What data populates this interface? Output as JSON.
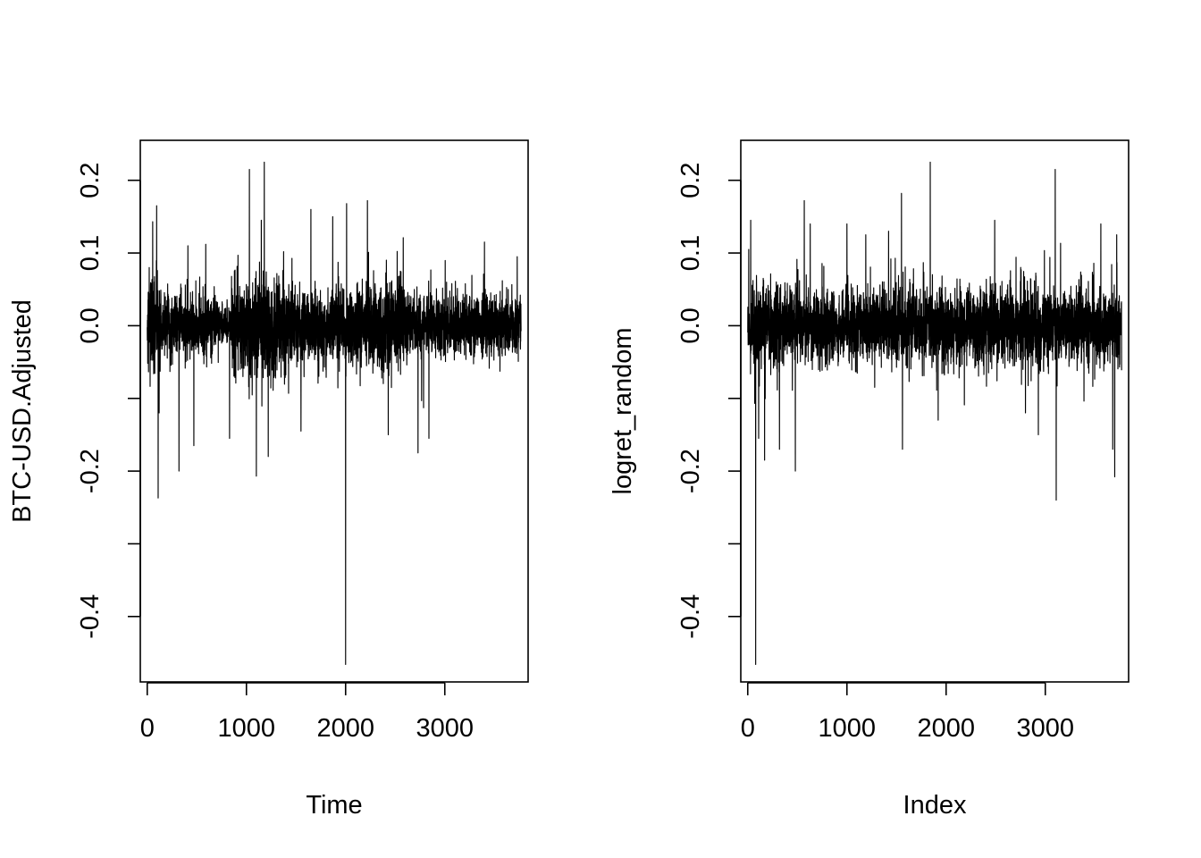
{
  "chart_data": [
    {
      "type": "line",
      "xlabel": "Time",
      "ylabel": "BTC-USD.Adjusted",
      "xticks": [
        0,
        1000,
        2000,
        3000
      ],
      "yticks": [
        -0.4,
        -0.3,
        -0.2,
        -0.1,
        0.0,
        0.1,
        0.2
      ],
      "ytick_labels": [
        "-0.4",
        "",
        "-0.2",
        "",
        "0.0",
        "0.1",
        "0.2"
      ],
      "xlim": [
        -70,
        3840
      ],
      "ylim": [
        -0.49,
        0.255
      ],
      "n_points": 3770,
      "noise": {
        "base_sigma": 0.028
      },
      "volatility_regimes": [
        {
          "x": [
            0,
            150
          ],
          "sigma": 0.045
        },
        {
          "x": [
            150,
            700
          ],
          "sigma": 0.03
        },
        {
          "x": [
            700,
            850
          ],
          "sigma": 0.018
        },
        {
          "x": [
            850,
            1100
          ],
          "sigma": 0.045
        },
        {
          "x": [
            1100,
            1400
          ],
          "sigma": 0.055
        },
        {
          "x": [
            1400,
            2200
          ],
          "sigma": 0.035
        },
        {
          "x": [
            2200,
            2600
          ],
          "sigma": 0.045
        },
        {
          "x": [
            2600,
            3775
          ],
          "sigma": 0.03
        }
      ],
      "spikes": [
        {
          "x": 20,
          "y": 0.08
        },
        {
          "x": 55,
          "y": 0.143
        },
        {
          "x": 95,
          "y": 0.165
        },
        {
          "x": 110,
          "y": -0.237
        },
        {
          "x": 120,
          "y": -0.12
        },
        {
          "x": 320,
          "y": -0.2
        },
        {
          "x": 410,
          "y": 0.11
        },
        {
          "x": 470,
          "y": -0.165
        },
        {
          "x": 590,
          "y": 0.112
        },
        {
          "x": 830,
          "y": -0.155
        },
        {
          "x": 1030,
          "y": 0.215
        },
        {
          "x": 1100,
          "y": -0.207
        },
        {
          "x": 1150,
          "y": 0.145
        },
        {
          "x": 1180,
          "y": 0.225
        },
        {
          "x": 1220,
          "y": -0.18
        },
        {
          "x": 1550,
          "y": -0.145
        },
        {
          "x": 1650,
          "y": 0.16
        },
        {
          "x": 1870,
          "y": 0.15
        },
        {
          "x": 2000,
          "y": -0.466
        },
        {
          "x": 2010,
          "y": 0.168
        },
        {
          "x": 2220,
          "y": 0.172
        },
        {
          "x": 2430,
          "y": -0.15
        },
        {
          "x": 2730,
          "y": -0.175
        },
        {
          "x": 2840,
          "y": -0.155
        },
        {
          "x": 3400,
          "y": 0.115
        },
        {
          "x": 3730,
          "y": 0.095
        }
      ]
    },
    {
      "type": "line",
      "xlabel": "Index",
      "ylabel": "logret_random",
      "xticks": [
        0,
        1000,
        2000,
        3000
      ],
      "yticks": [
        -0.4,
        -0.3,
        -0.2,
        -0.1,
        0.0,
        0.1,
        0.2
      ],
      "ytick_labels": [
        "-0.4",
        "",
        "-0.2",
        "",
        "0.0",
        "0.1",
        "0.2"
      ],
      "xlim": [
        -70,
        3840
      ],
      "ylim": [
        -0.49,
        0.255
      ],
      "n_points": 3770,
      "noise": {
        "base_sigma": 0.036
      },
      "volatility_regimes": [
        {
          "x": [
            0,
            3775
          ],
          "sigma": 0.036
        }
      ],
      "spikes": [
        {
          "x": 30,
          "y": 0.145
        },
        {
          "x": 80,
          "y": -0.466
        },
        {
          "x": 110,
          "y": -0.155
        },
        {
          "x": 170,
          "y": -0.185
        },
        {
          "x": 320,
          "y": -0.17
        },
        {
          "x": 480,
          "y": -0.2
        },
        {
          "x": 570,
          "y": 0.172
        },
        {
          "x": 630,
          "y": 0.14
        },
        {
          "x": 1000,
          "y": 0.14
        },
        {
          "x": 1190,
          "y": 0.125
        },
        {
          "x": 1420,
          "y": 0.13
        },
        {
          "x": 1550,
          "y": 0.182
        },
        {
          "x": 1560,
          "y": -0.17
        },
        {
          "x": 1840,
          "y": 0.225
        },
        {
          "x": 1920,
          "y": -0.13
        },
        {
          "x": 2490,
          "y": -0.13
        },
        {
          "x": 2490,
          "y": 0.145
        },
        {
          "x": 2800,
          "y": -0.12
        },
        {
          "x": 2930,
          "y": -0.15
        },
        {
          "x": 3100,
          "y": 0.215
        },
        {
          "x": 3110,
          "y": -0.24
        },
        {
          "x": 3560,
          "y": 0.14
        },
        {
          "x": 3680,
          "y": -0.17
        },
        {
          "x": 3700,
          "y": -0.208
        },
        {
          "x": 3720,
          "y": 0.125
        }
      ]
    }
  ]
}
